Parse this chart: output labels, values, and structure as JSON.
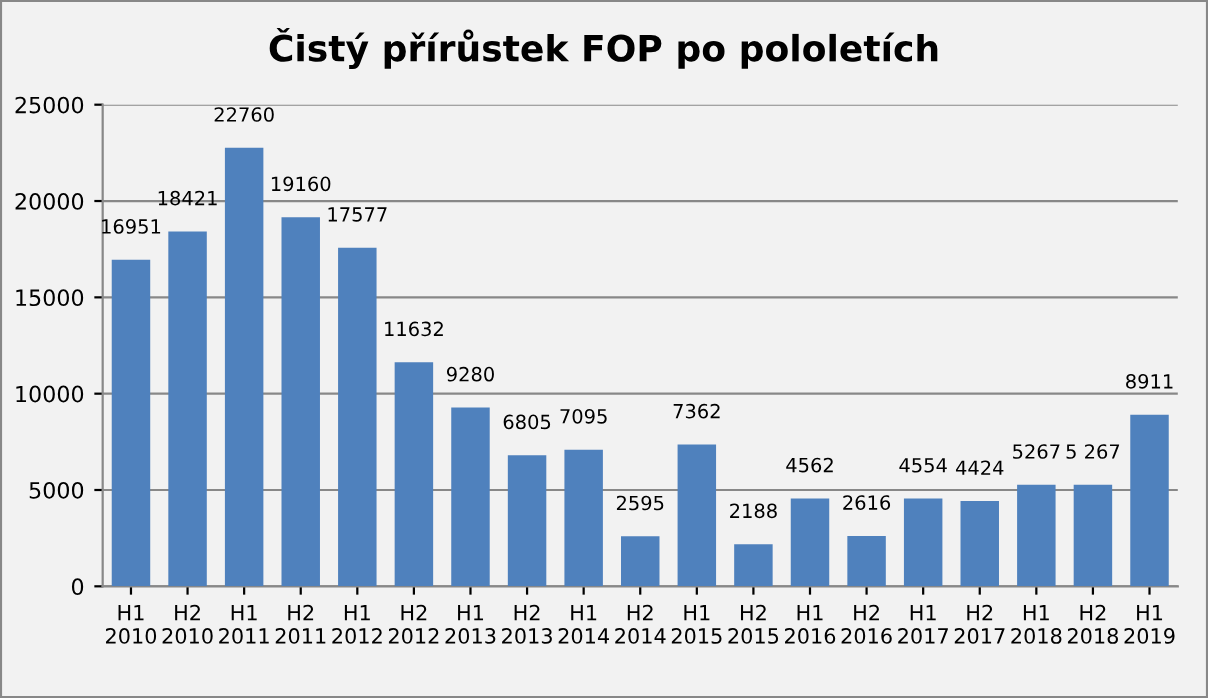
{
  "chart_data": {
    "type": "bar",
    "title": "Čistý přírůstek FOP po pololetích",
    "categories": [
      "H1\n2010",
      "H2\n2010",
      "H1\n2011",
      "H2\n2011",
      "H1\n2012",
      "H2\n2012",
      "H1\n2013",
      "H2\n2013",
      "H1\n2014",
      "H2\n2014",
      "H1\n2015",
      "H2\n2015",
      "H1\n2016",
      "H2\n2016",
      "H1\n2017",
      "H2\n2017",
      "H1\n2018",
      "H2\n2018",
      "H1\n2019"
    ],
    "values": [
      16951,
      18421,
      22760,
      19160,
      17577,
      11632,
      9280,
      6805,
      7095,
      2595,
      7362,
      2188,
      4562,
      2616,
      4554,
      4424,
      5267,
      5267,
      8911
    ],
    "value_labels": [
      "16951",
      "18421",
      "22760",
      "19160",
      "17577",
      "11632",
      "9280",
      "6805",
      "7095",
      "2595",
      "7362",
      "2188",
      "4562",
      "2616",
      "4554",
      "4424",
      "5267",
      "5 267",
      "8911"
    ],
    "color": "#4f81bd",
    "ylim": [
      0,
      25000
    ],
    "yticks": [
      0,
      5000,
      10000,
      15000,
      20000,
      25000
    ],
    "grid": "y",
    "legend": false
  }
}
